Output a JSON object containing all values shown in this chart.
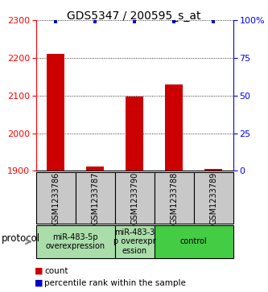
{
  "title": "GDS5347 / 200595_s_at",
  "samples": [
    "GSM1233786",
    "GSM1233787",
    "GSM1233790",
    "GSM1233788",
    "GSM1233789"
  ],
  "count_values": [
    2210,
    1912,
    2097,
    2130,
    1905
  ],
  "percentile_values": [
    99,
    99,
    99,
    99,
    99
  ],
  "ylim_left": [
    1900,
    2300
  ],
  "ylim_right": [
    0,
    100
  ],
  "yticks_left": [
    1900,
    2000,
    2100,
    2200,
    2300
  ],
  "yticks_right": [
    0,
    25,
    50,
    75,
    100
  ],
  "ytick_labels_right": [
    "0",
    "25",
    "50",
    "75",
    "100%"
  ],
  "bar_color": "#cc0000",
  "dot_color": "#0000cc",
  "bg_color": "#ffffff",
  "group_configs": [
    {
      "start": 0,
      "end": 2,
      "label": "miR-483-5p\noverexpression",
      "color": "#aaddaa"
    },
    {
      "start": 2,
      "end": 3,
      "label": "miR-483-3\np overexpr\nession",
      "color": "#aaddaa"
    },
    {
      "start": 3,
      "end": 5,
      "label": "control",
      "color": "#44cc44"
    }
  ],
  "sample_box_color": "#c8c8c8",
  "protocol_label": "protocol",
  "legend_count_label": "count",
  "legend_percentile_label": "percentile rank within the sample",
  "title_fontsize": 10,
  "tick_fontsize": 8,
  "sample_fontsize": 7,
  "proto_fontsize": 7,
  "legend_fontsize": 7.5
}
